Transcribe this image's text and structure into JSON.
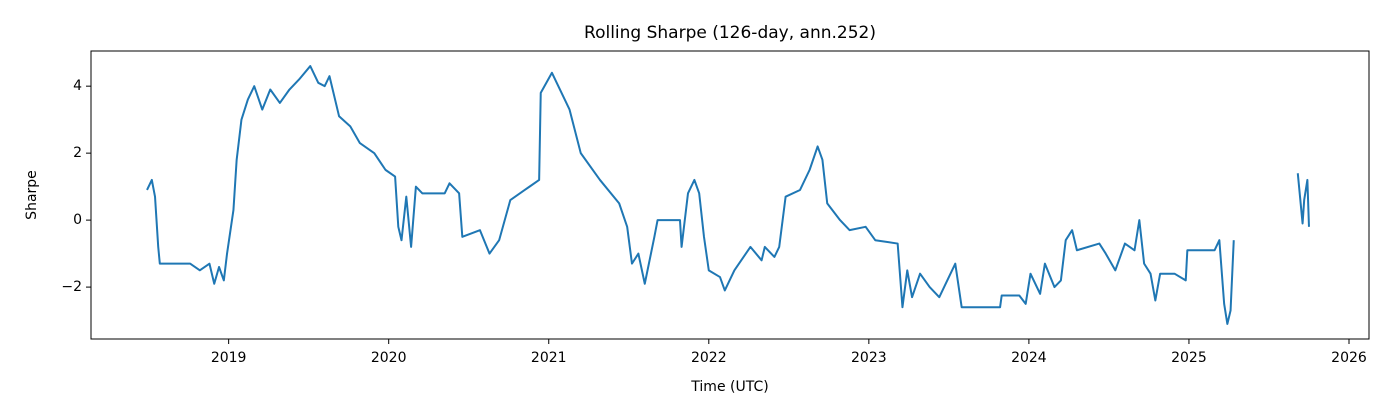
{
  "chart_data": {
    "type": "line",
    "title": "Rolling Sharpe (126-day, ann.252)",
    "x_label": "Time (UTC)",
    "y_label": "Sharpe",
    "color": "#1f77b4",
    "grid": false,
    "x": [
      2018.49,
      2018.52,
      2018.54,
      2018.56,
      2018.57,
      2018.76,
      2018.82,
      2018.88,
      2018.91,
      2018.94,
      2018.97,
      2018.99,
      2019.03,
      2019.05,
      2019.08,
      2019.12,
      2019.16,
      2019.21,
      2019.26,
      2019.32,
      2019.38,
      2019.44,
      2019.51,
      2019.56,
      2019.6,
      2019.63,
      2019.69,
      2019.76,
      2019.82,
      2019.91,
      2019.98,
      2020.04,
      2020.06,
      2020.08,
      2020.11,
      2020.14,
      2020.17,
      2020.21,
      2020.35,
      2020.38,
      2020.44,
      2020.46,
      2020.57,
      2020.63,
      2020.69,
      2020.76,
      2020.85,
      2020.88,
      2020.94,
      2020.95,
      2021.02,
      2021.13,
      2021.2,
      2021.32,
      2021.44,
      2021.49,
      2021.52,
      2021.56,
      2021.6,
      2021.66,
      2021.68,
      2021.82,
      2021.83,
      2021.87,
      2021.91,
      2021.94,
      2021.97,
      2022.0,
      2022.07,
      2022.1,
      2022.16,
      2022.26,
      2022.33,
      2022.35,
      2022.41,
      2022.44,
      2022.48,
      2022.57,
      2022.63,
      2022.68,
      2022.71,
      2022.74,
      2022.82,
      2022.88,
      2022.98,
      2023.04,
      2023.18,
      2023.21,
      2023.24,
      2023.27,
      2023.32,
      2023.38,
      2023.44,
      2023.54,
      2023.58,
      2023.82,
      2023.83,
      2023.94,
      2023.98,
      2024.01,
      2024.07,
      2024.1,
      2024.16,
      2024.2,
      2024.23,
      2024.27,
      2024.3,
      2024.44,
      2024.48,
      2024.54,
      2024.6,
      2024.66,
      2024.69,
      2024.72,
      2024.76,
      2024.79,
      2024.82,
      2024.91,
      2024.98,
      2024.99,
      2025.16,
      2025.19,
      2025.22,
      2025.24,
      2025.26,
      2025.28,
      2025.5,
      2025.68,
      2025.71,
      2025.72,
      2025.74,
      2025.75
    ],
    "values": [
      0.9,
      1.2,
      0.7,
      -0.8,
      -1.3,
      -1.3,
      -1.5,
      -1.3,
      -1.9,
      -1.4,
      -1.8,
      -1.0,
      0.3,
      1.8,
      3.0,
      3.6,
      4.0,
      3.3,
      3.9,
      3.5,
      3.9,
      4.2,
      4.6,
      4.1,
      4.0,
      4.3,
      3.1,
      2.8,
      2.3,
      2.0,
      1.5,
      1.3,
      -0.2,
      -0.6,
      0.7,
      -0.8,
      1.0,
      0.8,
      0.8,
      1.1,
      0.8,
      -0.5,
      -0.3,
      -1.0,
      -0.6,
      0.6,
      0.9,
      1.0,
      1.2,
      3.8,
      4.4,
      3.3,
      2.0,
      1.2,
      0.5,
      -0.2,
      -1.3,
      -1.0,
      -1.9,
      -0.5,
      0.0,
      0.0,
      -0.8,
      0.8,
      1.2,
      0.8,
      -0.5,
      -1.5,
      -1.7,
      -2.1,
      -1.5,
      -0.8,
      -1.2,
      -0.8,
      -1.1,
      -0.8,
      0.7,
      0.9,
      1.5,
      2.2,
      1.8,
      0.5,
      0.0,
      -0.3,
      -0.2,
      -0.6,
      -0.7,
      -2.6,
      -1.5,
      -2.3,
      -1.6,
      -2.0,
      -2.3,
      -1.3,
      -2.6,
      -2.6,
      -2.25,
      -2.25,
      -2.5,
      -1.6,
      -2.2,
      -1.3,
      -2.0,
      -1.8,
      -0.6,
      -0.3,
      -0.9,
      -0.7,
      -1.0,
      -1.5,
      -0.7,
      -0.9,
      0.0,
      -1.3,
      -1.6,
      -2.4,
      -1.6,
      -1.6,
      -1.8,
      -0.9,
      -0.9,
      -0.6,
      -2.5,
      -3.1,
      -2.7,
      -0.6,
      null,
      1.4,
      -0.1,
      0.6,
      1.2,
      -0.2
    ],
    "xlim": [
      2018.14,
      2026.125
    ],
    "xticks": [
      2019,
      2020,
      2021,
      2022,
      2023,
      2024,
      2025,
      2026
    ],
    "ylim": [
      -3.55,
      5.05
    ],
    "yticks": [
      {
        "value": -2,
        "label": "−2"
      },
      0,
      2,
      4
    ]
  }
}
